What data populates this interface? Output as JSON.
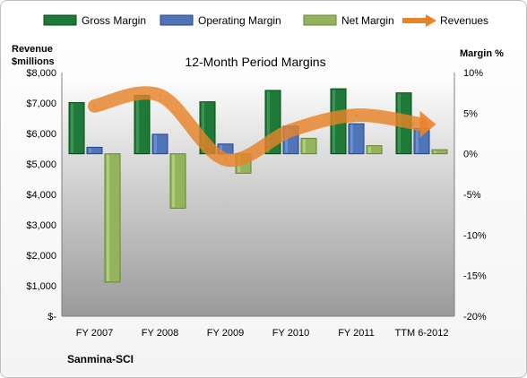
{
  "chart_data": {
    "type": "bar",
    "title": "12-Month Period Margins",
    "company": "Sanmina-SCI",
    "y_left_label": [
      "Revenue",
      "$millions"
    ],
    "y_right_label": "Margin %",
    "categories": [
      "FY 2007",
      "FY 2008",
      "FY 2009",
      "FY 2010",
      "FY 2011",
      "TTM 6-2012"
    ],
    "y_left_ticks": [
      "$-",
      "$1,000",
      "$2,000",
      "$3,000",
      "$4,000",
      "$5,000",
      "$6,000",
      "$7,000",
      "$8,000"
    ],
    "y_right_ticks": [
      "-20%",
      "-15%",
      "-10%",
      "-5%",
      "0%",
      "5%",
      "10%"
    ],
    "y_left_lim": [
      0,
      8000
    ],
    "y_right_lim": [
      -20,
      10
    ],
    "series": [
      {
        "name": "Gross Margin",
        "axis": "right",
        "kind": "bar",
        "color": "#1f7a3a",
        "values": [
          6.3,
          7.2,
          6.4,
          7.8,
          8.0,
          7.5
        ]
      },
      {
        "name": "Operating Margin",
        "axis": "right",
        "kind": "bar",
        "color": "#4f74b8",
        "values": [
          0.8,
          2.4,
          1.2,
          3.4,
          3.7,
          3.1
        ]
      },
      {
        "name": "Net Margin",
        "axis": "right",
        "kind": "bar",
        "color": "#93b35c",
        "values": [
          -15.8,
          -6.7,
          -2.4,
          1.9,
          1.0,
          0.5
        ]
      },
      {
        "name": "Revenues",
        "axis": "left",
        "kind": "line",
        "color": "#e8832a",
        "values": [
          6900,
          7250,
          5150,
          6100,
          6600,
          6300
        ]
      }
    ],
    "legend_position": "top",
    "grid": false
  }
}
